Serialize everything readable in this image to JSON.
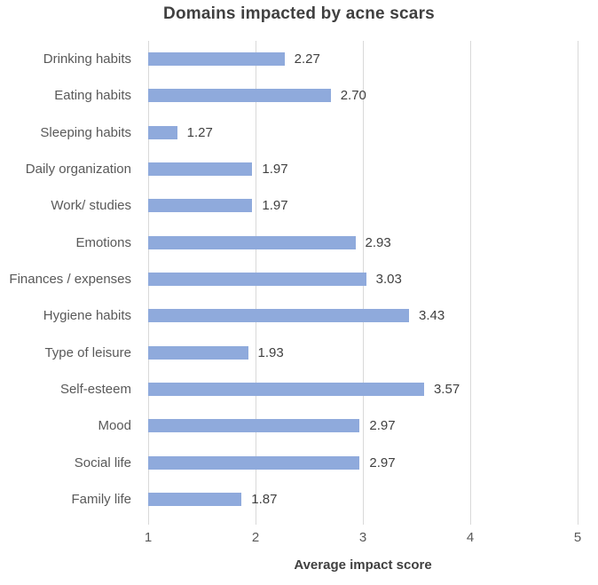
{
  "chart_data": {
    "type": "bar",
    "orientation": "horizontal",
    "title": "Domains impacted by acne scars",
    "xlabel": "Average impact score",
    "categories": [
      "Drinking habits",
      "Eating habits",
      "Sleeping habits",
      "Daily organization",
      "Work/ studies",
      "Emotions",
      "Finances / expenses",
      "Hygiene habits",
      "Type of leisure",
      "Self-esteem",
      "Mood",
      "Social life",
      "Family life"
    ],
    "values": [
      2.27,
      2.7,
      1.27,
      1.97,
      1.97,
      2.93,
      3.03,
      3.43,
      1.93,
      3.57,
      2.97,
      2.97,
      1.87
    ],
    "value_labels": [
      "2.27",
      "2.70",
      "1.27",
      "1.97",
      "1.97",
      "2.93",
      "3.03",
      "3.43",
      "1.93",
      "3.57",
      "2.97",
      "2.97",
      "1.87"
    ],
    "xlim": [
      1,
      5
    ],
    "xticks": [
      "1",
      "2",
      "3",
      "4",
      "5"
    ],
    "grid": true,
    "legend": "none",
    "colors": {
      "bar": "#8FAADC",
      "gridline": "#D9D9D9",
      "title_text": "#404040",
      "value_text": "#404040",
      "category_text": "#595959",
      "tick_text": "#595959",
      "axis_title_text": "#404040"
    }
  }
}
